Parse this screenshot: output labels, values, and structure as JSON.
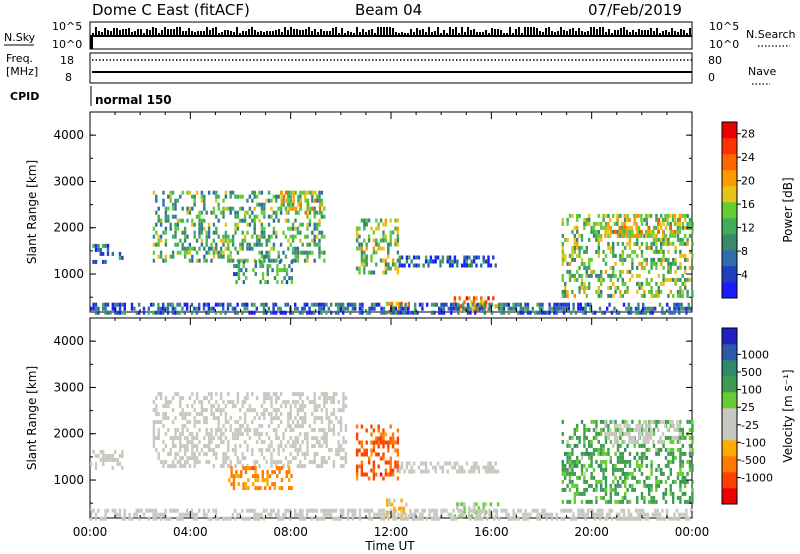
{
  "header": {
    "station": "Dome C East (fitACF)",
    "beam": "Beam 04",
    "date": "07/Feb/2019"
  },
  "status_panels": {
    "nsky_label": "N.Sky",
    "nsearch_label": "N.Search",
    "nsky_ticks": [
      "10^5",
      "10^0"
    ],
    "freq_label_1": "Freq.",
    "freq_label_2": "[MHz]",
    "freq_ticks": [
      "18",
      "8"
    ],
    "nave_label": "Nave",
    "nave_ticks": [
      "80",
      "0"
    ],
    "cpid_label": "CPID",
    "cpid_value": "normal 150"
  },
  "x_axis": {
    "label": "Time UT",
    "ticks": [
      "00:00",
      "04:00",
      "08:00",
      "12:00",
      "16:00",
      "20:00",
      "00:00"
    ]
  },
  "chart_data": [
    {
      "type": "heatmap",
      "title": "",
      "xlabel": "Time UT",
      "ylabel": "Slant Range [km]",
      "xlim_hours": [
        0,
        24
      ],
      "ylim_km": [
        180,
        4500
      ],
      "yticks": [
        "1000",
        "2000",
        "3000",
        "4000"
      ],
      "colorbar": {
        "label": "Power [dB]",
        "range": [
          0,
          30
        ],
        "ticks": [
          "4",
          "8",
          "12",
          "16",
          "20",
          "24",
          "28"
        ],
        "colors": [
          "#1a1aff",
          "#1f3fc0",
          "#2e6ea8",
          "#3a8a6a",
          "#3fae5a",
          "#66cc33",
          "#e6c21a",
          "#ff9900",
          "#ff6600",
          "#ff3300",
          "#ee0000"
        ]
      },
      "echo_regions": [
        {
          "t_start": 0.0,
          "t_end": 1.3,
          "r_min": 1300,
          "r_max": 1650,
          "value": 8
        },
        {
          "t_start": 2.5,
          "t_end": 9.3,
          "r_min": 1300,
          "r_max": 2800,
          "value": 12
        },
        {
          "t_start": 7.5,
          "t_end": 9.2,
          "r_min": 2300,
          "r_max": 2800,
          "value": 18
        },
        {
          "t_start": 5.7,
          "t_end": 8.0,
          "r_min": 800,
          "r_max": 1300,
          "value": 10
        },
        {
          "t_start": 10.6,
          "t_end": 12.3,
          "r_min": 1000,
          "r_max": 2200,
          "value": 14
        },
        {
          "t_start": 12.3,
          "t_end": 16.3,
          "r_min": 1200,
          "r_max": 1400,
          "value": 6
        },
        {
          "t_start": 14.5,
          "t_end": 16.3,
          "r_min": 180,
          "r_max": 520,
          "value": 22
        },
        {
          "t_start": 11.8,
          "t_end": 12.7,
          "r_min": 180,
          "r_max": 400,
          "value": 20
        },
        {
          "t_start": 0.0,
          "t_end": 24.0,
          "r_min": 180,
          "r_max": 380,
          "value": 6
        },
        {
          "t_start": 18.8,
          "t_end": 24.0,
          "r_min": 500,
          "r_max": 2300,
          "value": 14
        },
        {
          "t_start": 20.5,
          "t_end": 23.5,
          "r_min": 1800,
          "r_max": 2300,
          "value": 18
        }
      ]
    },
    {
      "type": "heatmap",
      "title": "",
      "xlabel": "Time UT",
      "ylabel": "Slant Range [km]",
      "xlim_hours": [
        0,
        24
      ],
      "ylim_km": [
        180,
        4500
      ],
      "yticks": [
        "1000",
        "2000",
        "3000",
        "4000"
      ],
      "colorbar": {
        "label": "Velocity [m s⁻¹]",
        "ticks": [
          "1000",
          "500",
          "100",
          "25",
          "-25",
          "-100",
          "-500",
          "-1000"
        ],
        "colors": [
          "#2020c0",
          "#2a5aa8",
          "#2f8a6a",
          "#3d9c50",
          "#66cc33",
          "#c8c8c0",
          "#c8c8c0",
          "#ffaa00",
          "#ff7a00",
          "#ff4000",
          "#ee0000"
        ]
      },
      "echo_regions": [
        {
          "t_start": 0.0,
          "t_end": 1.3,
          "r_min": 1300,
          "r_max": 1650,
          "value": 0
        },
        {
          "t_start": 2.5,
          "t_end": 10.2,
          "r_min": 1300,
          "r_max": 2900,
          "value": 0
        },
        {
          "t_start": 5.5,
          "t_end": 8.0,
          "r_min": 800,
          "r_max": 1300,
          "value": -150
        },
        {
          "t_start": 10.6,
          "t_end": 12.3,
          "r_min": 1000,
          "r_max": 2200,
          "value": -300
        },
        {
          "t_start": 12.3,
          "t_end": 16.3,
          "r_min": 1200,
          "r_max": 1400,
          "value": 0
        },
        {
          "t_start": 14.5,
          "t_end": 16.3,
          "r_min": 180,
          "r_max": 520,
          "value": 60
        },
        {
          "t_start": 11.8,
          "t_end": 12.7,
          "r_min": 180,
          "r_max": 600,
          "value": -30
        },
        {
          "t_start": 0.0,
          "t_end": 24.0,
          "r_min": 180,
          "r_max": 380,
          "value": 20
        },
        {
          "t_start": 18.8,
          "t_end": 24.0,
          "r_min": 500,
          "r_max": 2300,
          "value": 150
        },
        {
          "t_start": 20.5,
          "t_end": 23.5,
          "r_min": 1800,
          "r_max": 2300,
          "value": 0
        }
      ]
    }
  ]
}
